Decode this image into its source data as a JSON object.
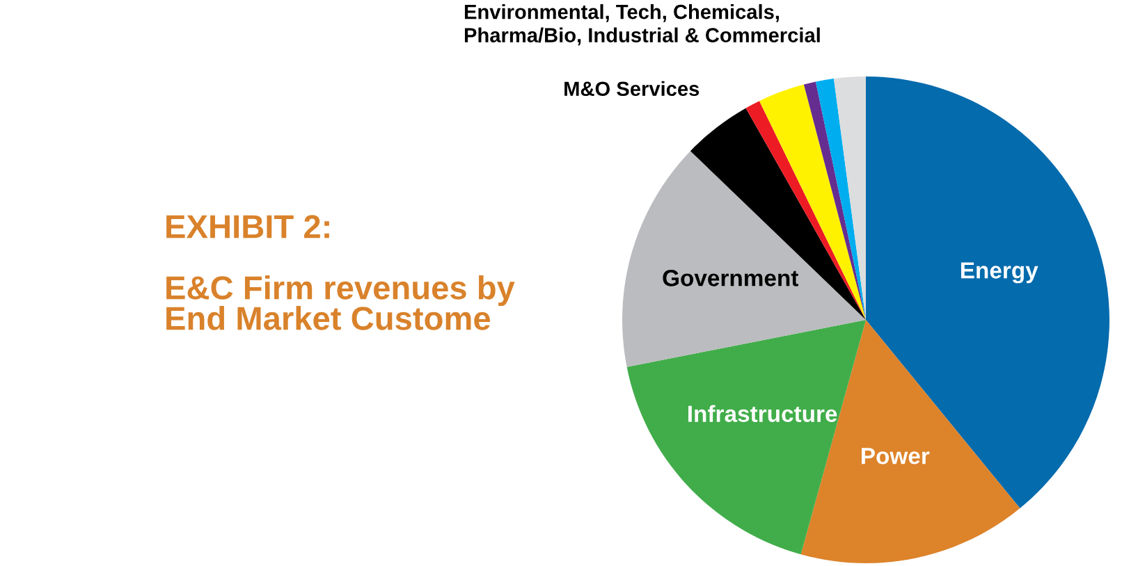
{
  "chart_data": {
    "type": "pie",
    "title": "EXHIBIT 2:",
    "subtitle": "E&C Firm revenues by\nEnd Market Custome",
    "categories": [
      "Energy",
      "Power",
      "Infrastructure",
      "Government",
      "M&O Services",
      null,
      null,
      null,
      null,
      null
    ],
    "values": [
      39.1,
      15.2,
      17.6,
      15.3,
      4.6,
      1.0,
      3.1,
      0.8,
      1.2,
      2.1
    ],
    "colors": [
      "#046bad",
      "#dd832a",
      "#41ad4a",
      "#bbbcbf",
      "#000000",
      "#ed1c24",
      "#fff200",
      "#662d91",
      "#00aeef",
      "#dcdddf"
    ],
    "annotations": [
      "Environmental, Tech, Chemicals,\nPharma/Bio, Industrial & Commercial"
    ]
  }
}
